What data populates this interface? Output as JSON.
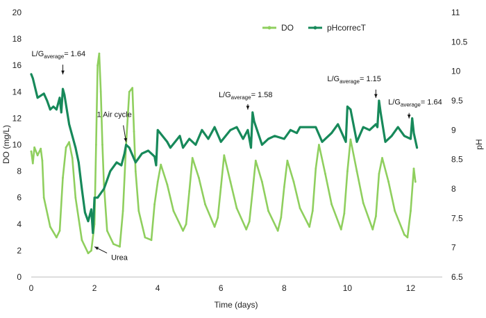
{
  "chart_data": {
    "type": "line",
    "xlabel": "Time (days)",
    "ylabel_left": "DO (mg/L)",
    "ylabel_right": "pH",
    "xlim": [
      0,
      13
    ],
    "ylim_left": [
      0,
      20
    ],
    "ylim_right": [
      6.5,
      11
    ],
    "x_ticks": [
      0,
      2,
      4,
      6,
      8,
      10,
      12
    ],
    "y_ticks_left": [
      0,
      2,
      4,
      6,
      8,
      10,
      12,
      14,
      16,
      18,
      20
    ],
    "y_ticks_right": [
      "6.5",
      "7",
      "7.5",
      "8",
      "8.5",
      "9",
      "9.5",
      "10",
      "10.5",
      "11"
    ],
    "grid": false,
    "legend_position": "top-right",
    "colors": {
      "DO": "#8fcf5e",
      "pH": "#17895a"
    },
    "series": [
      {
        "name": "DO",
        "axis": "left",
        "x": [
          0,
          0.05,
          0.1,
          0.2,
          0.3,
          0.35,
          0.4,
          0.6,
          0.8,
          0.9,
          1.0,
          1.1,
          1.2,
          1.3,
          1.4,
          1.6,
          1.8,
          1.9,
          2.0,
          2.05,
          2.1,
          2.15,
          2.2,
          2.25,
          2.3,
          2.4,
          2.6,
          2.8,
          2.9,
          3.0,
          3.1,
          3.2,
          3.25,
          3.3,
          3.4,
          3.6,
          3.8,
          3.9,
          4.0,
          4.1,
          4.3,
          4.5,
          4.8,
          4.9,
          5.0,
          5.1,
          5.3,
          5.5,
          5.8,
          5.9,
          6.0,
          6.1,
          6.3,
          6.5,
          6.8,
          6.9,
          7.0,
          7.1,
          7.3,
          7.5,
          7.8,
          7.9,
          8.0,
          8.1,
          8.3,
          8.5,
          8.8,
          8.9,
          9.0,
          9.1,
          9.3,
          9.5,
          9.8,
          9.9,
          10.0,
          10.1,
          10.3,
          10.5,
          10.8,
          10.9,
          11.0,
          11.1,
          11.3,
          11.5,
          11.8,
          11.9,
          12.0,
          12.1,
          12.15
        ],
        "values": [
          9.5,
          8.6,
          9.8,
          9.2,
          9.7,
          8.8,
          6.0,
          3.8,
          3.0,
          3.5,
          7.5,
          9.8,
          10.2,
          9.0,
          6.0,
          2.8,
          1.8,
          2.0,
          4.0,
          10.0,
          16.0,
          16.9,
          14.0,
          10.0,
          7.0,
          3.5,
          2.5,
          2.3,
          5.0,
          10.0,
          14.0,
          14.3,
          11.0,
          8.0,
          5.0,
          3.0,
          2.8,
          5.5,
          7.2,
          8.5,
          7.0,
          5.0,
          3.5,
          4.0,
          6.5,
          9.0,
          7.5,
          5.5,
          3.8,
          4.5,
          6.8,
          9.2,
          7.2,
          5.2,
          3.6,
          4.2,
          6.5,
          8.8,
          7.2,
          5.0,
          3.5,
          4.5,
          6.8,
          8.8,
          7.2,
          5.2,
          3.8,
          5.0,
          8.2,
          10.0,
          7.8,
          5.5,
          3.6,
          4.8,
          8.0,
          10.4,
          8.0,
          5.6,
          3.6,
          4.6,
          7.8,
          9.0,
          7.2,
          5.0,
          3.2,
          3.0,
          5.0,
          8.2,
          7.2
        ]
      },
      {
        "name": "pHcorrecT",
        "axis": "right",
        "x": [
          0,
          0.05,
          0.2,
          0.4,
          0.5,
          0.6,
          0.7,
          0.8,
          0.9,
          0.95,
          1.0,
          1.05,
          1.2,
          1.4,
          1.5,
          1.6,
          1.7,
          1.8,
          1.9,
          1.95,
          2.0,
          2.1,
          2.3,
          2.5,
          2.7,
          2.85,
          2.95,
          3.0,
          3.1,
          3.3,
          3.5,
          3.7,
          3.9,
          3.95,
          4.0,
          4.3,
          4.4,
          4.7,
          4.8,
          5.0,
          5.2,
          5.4,
          5.6,
          5.8,
          6.0,
          6.3,
          6.5,
          6.7,
          6.85,
          6.95,
          7.0,
          7.05,
          7.3,
          7.5,
          7.7,
          8.0,
          8.2,
          8.4,
          8.5,
          8.8,
          9.0,
          9.2,
          9.5,
          9.7,
          9.95,
          10.0,
          10.1,
          10.3,
          10.5,
          10.7,
          10.9,
          10.95,
          11.0,
          11.05,
          11.2,
          11.4,
          11.6,
          11.8,
          12.0,
          12.05,
          12.1,
          12.2
        ],
        "values": [
          9.95,
          9.88,
          9.55,
          9.62,
          9.5,
          9.35,
          9.4,
          9.35,
          9.55,
          9.3,
          9.7,
          9.6,
          9.1,
          8.7,
          8.45,
          8.0,
          7.6,
          7.45,
          7.65,
          7.25,
          7.85,
          7.85,
          8.0,
          8.3,
          8.45,
          8.4,
          8.6,
          8.75,
          8.7,
          8.45,
          8.6,
          8.65,
          8.55,
          8.4,
          9.0,
          8.8,
          8.7,
          8.9,
          8.7,
          8.85,
          8.75,
          9.0,
          8.85,
          9.05,
          8.8,
          9.0,
          9.05,
          8.85,
          9.0,
          8.7,
          9.3,
          9.15,
          8.75,
          8.85,
          8.9,
          8.85,
          9.0,
          8.95,
          9.05,
          9.05,
          9.05,
          8.8,
          8.95,
          9.1,
          8.8,
          9.4,
          9.35,
          8.8,
          9.05,
          9.0,
          9.1,
          9.05,
          9.5,
          9.3,
          8.8,
          8.9,
          9.05,
          8.9,
          8.85,
          9.2,
          8.95,
          8.7
        ]
      }
    ],
    "annotations": [
      {
        "id": "lg1",
        "base": "L/G",
        "sub": "average",
        "tail": "= 1.64",
        "x": 1.0,
        "axis": "right",
        "y": 9.9
      },
      {
        "id": "air",
        "text": "1 Air cycle",
        "x": 3.0,
        "axis": "right",
        "y": 8.75
      },
      {
        "id": "urea",
        "text": "Urea",
        "x": 2.0,
        "axis": "right",
        "y": 7.05
      },
      {
        "id": "lg2",
        "base": "L/G",
        "sub": "average",
        "tail": "= 1.58",
        "x": 6.85,
        "axis": "right",
        "y": 9.3
      },
      {
        "id": "lg3",
        "base": "L/G",
        "sub": "average",
        "tail": "= 1.15",
        "x": 10.9,
        "axis": "right",
        "y": 9.5
      },
      {
        "id": "lg4",
        "base": "L/G",
        "sub": "average",
        "tail": "= 1.64",
        "x": 11.95,
        "axis": "right",
        "y": 9.15
      }
    ]
  }
}
